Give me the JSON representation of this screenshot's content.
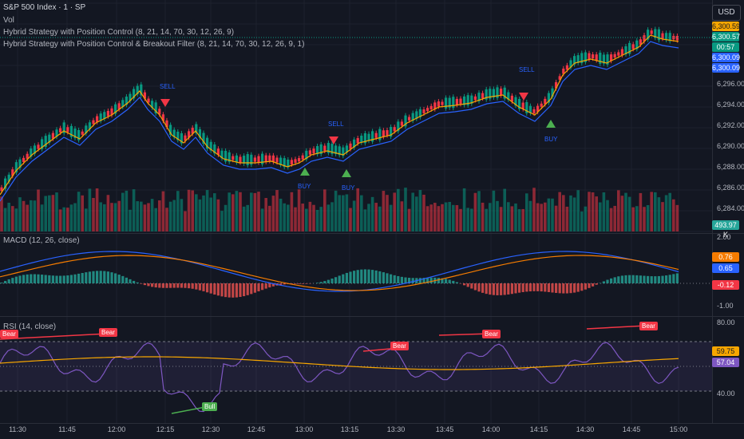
{
  "header": {
    "symbol": "S&P 500 Index · 1 · SP",
    "vol": "Vol",
    "strategy1": "Hybrid Strategy with Position Control (8, 21, 14, 70, 30, 12, 26, 9)",
    "strategy2": "Hybrid Strategy with Position Control & Breakout Filter (8, 21, 14, 70, 30, 12, 26, 9, 1)"
  },
  "currency": "USD",
  "price_axis": {
    "ticks": [
      "6,296.00",
      "6,294.00",
      "6,292.00",
      "6,290.00",
      "6,288.00",
      "6,286.00",
      "6,284.00"
    ],
    "tags": [
      {
        "label": "6,300.59",
        "color": "#f7a600"
      },
      {
        "label": "6,300.57",
        "color": "#089981"
      },
      {
        "label": "00:57",
        "color": "#089981"
      },
      {
        "label": "6,300.09",
        "color": "#2962ff"
      },
      {
        "label": "6,300.09",
        "color": "#2962ff"
      }
    ],
    "volume_tag": "493.97 K"
  },
  "signals": {
    "sell": "SELL",
    "buy": "BUY"
  },
  "macd": {
    "label": "MACD (12, 26, close)",
    "ticks": [
      "2.00",
      "-1.00"
    ],
    "tags": [
      {
        "label": "0.76",
        "color": "#f57c00"
      },
      {
        "label": "0.65",
        "color": "#2962ff"
      },
      {
        "label": "-0.12",
        "color": "#f23645"
      }
    ]
  },
  "rsi": {
    "label": "RSI (14, close)",
    "ticks": [
      "80.00",
      "40.00"
    ],
    "tags": [
      {
        "label": "59.75",
        "color": "#f7a600"
      },
      {
        "label": "57.04",
        "color": "#7e57c2"
      }
    ],
    "bear": "Bear",
    "bull": "Bull"
  },
  "time_axis": [
    "11:30",
    "11:45",
    "12:00",
    "12:15",
    "12:30",
    "12:45",
    "13:00",
    "13:15",
    "13:30",
    "13:45",
    "14:00",
    "14:15",
    "14:30",
    "14:45",
    "15:00"
  ]
}
